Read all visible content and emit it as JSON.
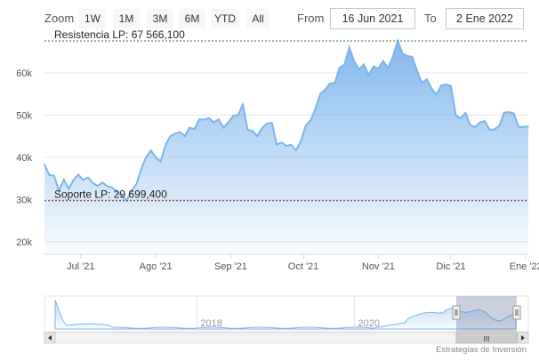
{
  "toolbar": {
    "zoom_label": "Zoom",
    "buttons": [
      "1W",
      "1M",
      "3M",
      "6M",
      "YTD",
      "All"
    ],
    "from_label": "From",
    "from_value": "16 Jun 2021",
    "to_label": "To",
    "to_value": "2 Ene 2022"
  },
  "annotations": {
    "resistance_label": "Resistencia LP: 67 566,100",
    "support_label": "Soporte LP: 29 699,400",
    "resistance_value": 67566.1,
    "support_value": 29699.4
  },
  "navigator": {
    "ticks": [
      {
        "label": "2018",
        "x": 2018.0
      },
      {
        "label": "2020",
        "x": 2020.0
      }
    ],
    "scroll_grip": "III"
  },
  "credit": "Estrategias de Inversión",
  "colors": {
    "line": "#7cb5ec",
    "resistance": "#2e7d32",
    "support": "#8b1a2b"
  },
  "chart_data": {
    "type": "area",
    "title": "",
    "xlabel": "",
    "ylabel": "",
    "x_range": [
      "2021-06-16",
      "2022-01-02"
    ],
    "ylim": [
      17000,
      68000
    ],
    "y_ticks": [
      {
        "label": "20k",
        "value": 20000
      },
      {
        "label": "30k",
        "value": 30000
      },
      {
        "label": "40k",
        "value": 40000
      },
      {
        "label": "50k",
        "value": 50000
      },
      {
        "label": "60k",
        "value": 60000
      }
    ],
    "x_ticks": [
      {
        "label": "Jul '21",
        "date": "2021-07-01"
      },
      {
        "label": "Ago '21",
        "date": "2021-08-01"
      },
      {
        "label": "Sep '21",
        "date": "2021-09-01"
      },
      {
        "label": "Oct '21",
        "date": "2021-10-01"
      },
      {
        "label": "Nov '21",
        "date": "2021-11-01"
      },
      {
        "label": "Dic '21",
        "date": "2021-12-01"
      },
      {
        "label": "Ene '22",
        "date": "2022-01-01"
      }
    ],
    "series": [
      {
        "x": [
          "2021-06-16",
          "2021-06-18",
          "2021-06-20",
          "2021-06-22",
          "2021-06-24",
          "2021-06-26",
          "2021-06-28",
          "2021-06-30",
          "2021-07-02",
          "2021-07-04",
          "2021-07-06",
          "2021-07-08",
          "2021-07-10",
          "2021-07-12",
          "2021-07-14",
          "2021-07-16",
          "2021-07-18",
          "2021-07-20",
          "2021-07-22",
          "2021-07-24",
          "2021-07-26",
          "2021-07-28",
          "2021-07-30",
          "2021-08-01",
          "2021-08-03",
          "2021-08-05",
          "2021-08-07",
          "2021-08-09",
          "2021-08-11",
          "2021-08-13",
          "2021-08-15",
          "2021-08-17",
          "2021-08-19",
          "2021-08-21",
          "2021-08-23",
          "2021-08-25",
          "2021-08-27",
          "2021-08-29",
          "2021-08-31",
          "2021-09-02",
          "2021-09-04",
          "2021-09-06",
          "2021-09-08",
          "2021-09-10",
          "2021-09-12",
          "2021-09-14",
          "2021-09-16",
          "2021-09-18",
          "2021-09-20",
          "2021-09-22",
          "2021-09-24",
          "2021-09-26",
          "2021-09-28",
          "2021-09-30",
          "2021-10-02",
          "2021-10-04",
          "2021-10-06",
          "2021-10-08",
          "2021-10-10",
          "2021-10-12",
          "2021-10-14",
          "2021-10-16",
          "2021-10-18",
          "2021-10-20",
          "2021-10-22",
          "2021-10-24",
          "2021-10-26",
          "2021-10-28",
          "2021-10-30",
          "2021-11-01",
          "2021-11-03",
          "2021-11-05",
          "2021-11-07",
          "2021-11-09",
          "2021-11-11",
          "2021-11-13",
          "2021-11-15",
          "2021-11-17",
          "2021-11-19",
          "2021-11-21",
          "2021-11-23",
          "2021-11-25",
          "2021-11-27",
          "2021-11-29",
          "2021-12-01",
          "2021-12-03",
          "2021-12-05",
          "2021-12-07",
          "2021-12-09",
          "2021-12-11",
          "2021-12-13",
          "2021-12-15",
          "2021-12-17",
          "2021-12-19",
          "2021-12-21",
          "2021-12-23",
          "2021-12-25",
          "2021-12-27",
          "2021-12-29",
          "2021-12-31",
          "2022-01-02"
        ],
        "values": [
          38300,
          35800,
          35600,
          32000,
          34700,
          32500,
          34600,
          35900,
          34600,
          35200,
          33900,
          33200,
          34000,
          33100,
          32800,
          31800,
          30800,
          29800,
          32100,
          33600,
          37200,
          40000,
          41600,
          40000,
          39000,
          42800,
          45000,
          45600,
          46000,
          45000,
          47000,
          46700,
          49000,
          48900,
          49300,
          48300,
          49000,
          47000,
          48300,
          49800,
          50000,
          52500,
          46500,
          46200,
          45000,
          47000,
          48000,
          48200,
          43000,
          43500,
          42700,
          43000,
          41700,
          43800,
          47500,
          48800,
          51500,
          55000,
          56000,
          57500,
          57600,
          61200,
          62000,
          66000,
          62800,
          60800,
          62000,
          59500,
          61500,
          61000,
          62800,
          61200,
          63800,
          67550,
          64600,
          64000,
          63800,
          60500,
          57600,
          58500,
          56300,
          54800,
          57000,
          57300,
          56900,
          50000,
          49200,
          50500,
          47600,
          47200,
          48300,
          48600,
          46500,
          46600,
          47500,
          50600,
          50700,
          50400,
          47200,
          47200,
          47300
        ]
      }
    ]
  }
}
